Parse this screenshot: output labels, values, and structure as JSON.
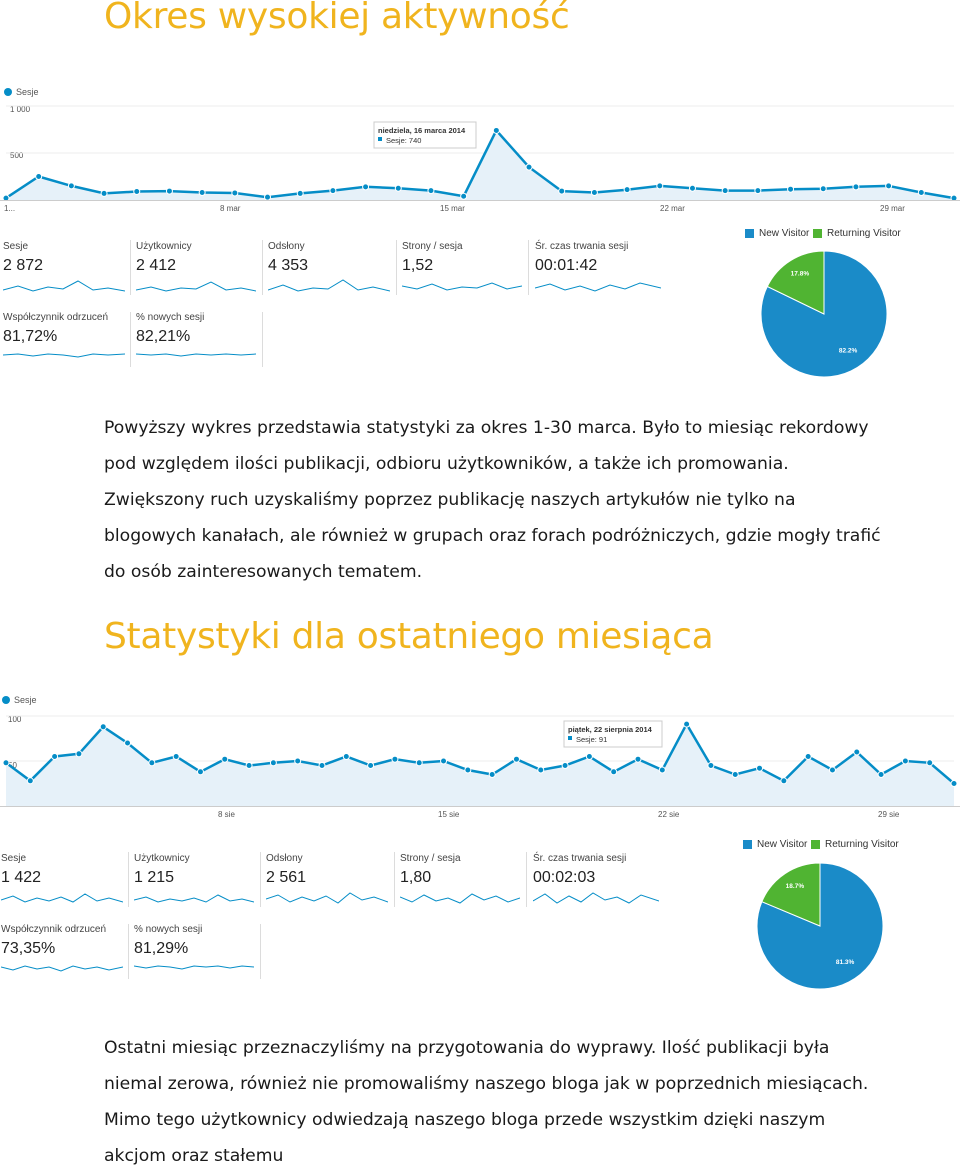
{
  "colors": {
    "heading": "#f0b41e",
    "series": "#058dc7",
    "new_visitor": "#1a8bc8",
    "returning_visitor": "#50b432"
  },
  "section1": {
    "heading": "Okres wysokiej aktywność",
    "chart_data": {
      "type": "area",
      "legend": "Sesje",
      "y_ticks": [
        "1 000",
        "500"
      ],
      "ylim": [
        0,
        1000
      ],
      "x_labels": [
        "1...",
        "8 mar",
        "15 mar",
        "22 mar",
        "29 mar"
      ],
      "x": [
        1,
        2,
        3,
        4,
        5,
        6,
        7,
        8,
        9,
        10,
        11,
        12,
        13,
        14,
        15,
        16,
        17,
        18,
        19,
        20,
        21,
        22,
        23,
        24,
        25,
        26,
        27,
        28,
        29,
        30
      ],
      "values": [
        20,
        250,
        150,
        70,
        90,
        95,
        80,
        75,
        30,
        70,
        100,
        140,
        125,
        100,
        40,
        740,
        350,
        95,
        80,
        110,
        150,
        125,
        100,
        100,
        115,
        120,
        140,
        150,
        80,
        20
      ],
      "tooltip": {
        "date": "niedziela, 16 marca 2014",
        "text": "Sesje: 740"
      }
    },
    "metrics": [
      {
        "label": "Sesje",
        "value": "2 872"
      },
      {
        "label": "Użytkownicy",
        "value": "2 412"
      },
      {
        "label": "Odsłony",
        "value": "4 353"
      },
      {
        "label": "Strony / sesja",
        "value": "1,52"
      },
      {
        "label": "Śr. czas trwania sesji",
        "value": "00:01:42"
      },
      {
        "label": "Współczynnik odrzuceń",
        "value": "81,72%"
      },
      {
        "label": "% nowych sesji",
        "value": "82,21%"
      }
    ],
    "pie": {
      "type": "pie",
      "legend": [
        "New Visitor",
        "Returning Visitor"
      ],
      "values": [
        82.2,
        17.8
      ],
      "labels": [
        "82.2%",
        "17.8%"
      ]
    },
    "paragraph": "Powyższy wykres przedstawia statystyki za okres 1-30 marca. Było to miesiąc rekordowy pod względem ilości publikacji, odbioru użytkowników, a także ich promowania. Zwiększony ruch uzyskaliśmy poprzez publikację naszych artykułów nie tylko na blogowych kanałach, ale również w grupach oraz forach podróżniczych, gdzie mogły trafić do osób zainteresowanych tematem."
  },
  "section2": {
    "heading": "Statystyki dla ostatniego miesiąca",
    "chart_data": {
      "type": "line",
      "legend": "Sesje",
      "y_ticks": [
        "100",
        "50"
      ],
      "ylim": [
        0,
        100
      ],
      "x_labels": [
        "8 sie",
        "15 sie",
        "22 sie",
        "29 sie"
      ],
      "x": [
        1,
        2,
        3,
        4,
        5,
        6,
        7,
        8,
        9,
        10,
        11,
        12,
        13,
        14,
        15,
        16,
        17,
        18,
        19,
        20,
        21,
        22,
        23,
        24,
        25,
        26,
        27,
        28,
        29,
        30,
        31,
        32,
        33,
        34,
        35,
        36,
        37,
        38,
        39,
        40
      ],
      "values": [
        48,
        28,
        55,
        58,
        88,
        70,
        48,
        55,
        38,
        52,
        45,
        48,
        50,
        45,
        55,
        45,
        52,
        48,
        50,
        40,
        35,
        52,
        40,
        45,
        55,
        38,
        52,
        40,
        91,
        45,
        35,
        42,
        28,
        55,
        40,
        60,
        35,
        50,
        48,
        25
      ],
      "tooltip": {
        "date": "piątek, 22 sierpnia 2014",
        "text": "Sesje: 91"
      }
    },
    "metrics": [
      {
        "label": "Sesje",
        "value": "1 422"
      },
      {
        "label": "Użytkownicy",
        "value": "1 215"
      },
      {
        "label": "Odsłony",
        "value": "2 561"
      },
      {
        "label": "Strony / sesja",
        "value": "1,80"
      },
      {
        "label": "Śr. czas trwania sesji",
        "value": "00:02:03"
      },
      {
        "label": "Współczynnik odrzuceń",
        "value": "73,35%"
      },
      {
        "label": "% nowych sesji",
        "value": "81,29%"
      }
    ],
    "pie": {
      "type": "pie",
      "legend": [
        "New Visitor",
        "Returning Visitor"
      ],
      "values": [
        81.3,
        18.7
      ],
      "labels": [
        "81.3%",
        "18.7%"
      ]
    },
    "paragraph": "Ostatni miesiąc przeznaczyliśmy na przygotowania do wyprawy. Ilość publikacji była niemal zerowa, również nie promowaliśmy naszego bloga jak w poprzednich miesiącach. Mimo tego użytkownicy odwiedzają naszego bloga przede wszystkim dzięki naszym akcjom oraz stałemu"
  }
}
